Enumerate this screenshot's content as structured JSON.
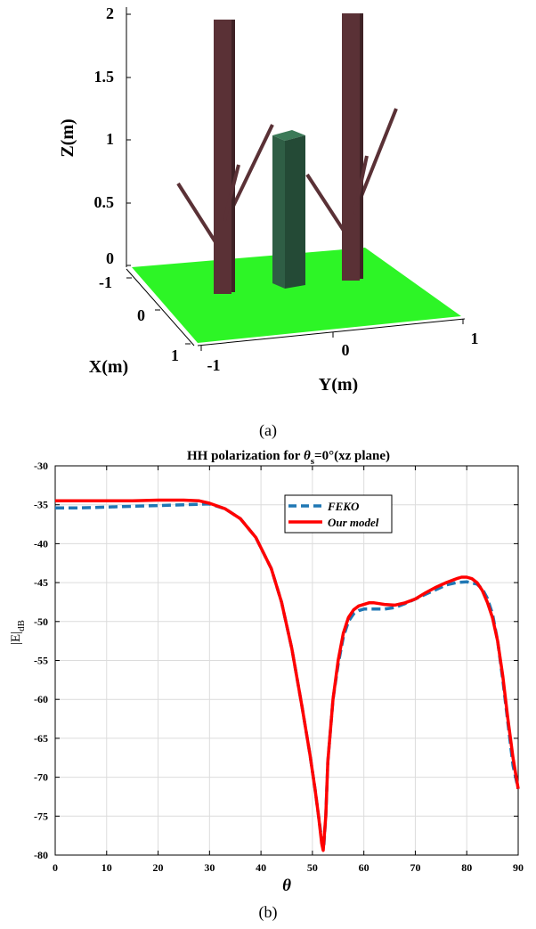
{
  "panel_a": {
    "caption": "(a)",
    "z_axis": {
      "label": "Z(m)",
      "ticks": [
        "0",
        "0.5",
        "1",
        "1.5",
        "2"
      ]
    },
    "x_axis": {
      "label": "X(m)",
      "ticks": [
        "-1",
        "0",
        "1"
      ]
    },
    "y_axis": {
      "label": "Y(m)",
      "ticks": [
        "-1",
        "0",
        "1"
      ]
    },
    "colors": {
      "ground": "#2df526",
      "trunk": "#5a3136",
      "trunk_side": "#3f2226",
      "block": "#2f5e45",
      "block_top": "#3c7a58",
      "block_side": "#244a36",
      "branch": "#5a3136"
    }
  },
  "panel_b": {
    "caption": "(b)",
    "title_prefix": "HH polarization for ",
    "title_theta": "θ",
    "title_sub": "s",
    "title_suffix": "=0°(xz plane)",
    "ylabel_main": "|E|",
    "ylabel_sub": "dB",
    "xlabel": "θ",
    "legend": {
      "feko": "FEKO",
      "model": "Our model"
    }
  },
  "chart_data": {
    "type": "line",
    "title": "HH polarization for θs=0°(xz plane)",
    "xlabel": "θ",
    "ylabel": "|E|dB",
    "xlim": [
      0,
      90
    ],
    "ylim": [
      -80,
      -30
    ],
    "xticks": [
      0,
      10,
      20,
      30,
      40,
      50,
      60,
      70,
      80,
      90
    ],
    "yticks": [
      -30,
      -35,
      -40,
      -45,
      -50,
      -55,
      -60,
      -65,
      -70,
      -75,
      -80
    ],
    "grid": true,
    "legend_position": "top-right",
    "series": [
      {
        "name": "FEKO",
        "color": "#1f77b4",
        "style": "dashed",
        "x": [
          0,
          5,
          10,
          15,
          20,
          25,
          30,
          33,
          36,
          39,
          42,
          44,
          46,
          48,
          49.5,
          50.5,
          51.2,
          51.8,
          52.2,
          52.6,
          53,
          54,
          55,
          56,
          57,
          58,
          59,
          60,
          62,
          64,
          66,
          68,
          70,
          72,
          74,
          76,
          78,
          80,
          82,
          83,
          84,
          85,
          86,
          87,
          88,
          89,
          90
        ],
        "y": [
          -35.4,
          -35.4,
          -35.3,
          -35.2,
          -35.1,
          -35,
          -34.9,
          -35.5,
          -36.8,
          -39.2,
          -43.2,
          -47.5,
          -53.5,
          -61,
          -67,
          -71.5,
          -75,
          -78,
          -79,
          -75,
          -68,
          -60,
          -55.5,
          -52,
          -50,
          -49,
          -48.6,
          -48.4,
          -48.4,
          -48.4,
          -48.2,
          -47.7,
          -47.1,
          -46.5,
          -45.9,
          -45.3,
          -45,
          -44.9,
          -45.2,
          -45.8,
          -47,
          -49,
          -52.5,
          -57.5,
          -63,
          -68.5,
          -71.5
        ]
      },
      {
        "name": "Our model",
        "color": "#ff0000",
        "style": "solid",
        "x": [
          0,
          5,
          10,
          15,
          20,
          25,
          28,
          30,
          33,
          36,
          39,
          42,
          44,
          46,
          48,
          49.5,
          50.5,
          51.2,
          51.8,
          52.1,
          52.6,
          53,
          54,
          55,
          56,
          57,
          58,
          59,
          60,
          61,
          62,
          63,
          64,
          66,
          68,
          70,
          72,
          74,
          76,
          78,
          79,
          80,
          81,
          82,
          83,
          84,
          85,
          86,
          87,
          88,
          89,
          90
        ],
        "y": [
          -34.5,
          -34.5,
          -34.5,
          -34.5,
          -34.4,
          -34.4,
          -34.5,
          -34.8,
          -35.5,
          -36.8,
          -39.2,
          -43.2,
          -47.5,
          -53.5,
          -61,
          -67,
          -71.5,
          -75,
          -78.5,
          -79.4,
          -75,
          -68,
          -60,
          -55,
          -51.5,
          -49.5,
          -48.5,
          -48,
          -47.8,
          -47.6,
          -47.6,
          -47.7,
          -47.8,
          -47.9,
          -47.6,
          -47.1,
          -46.3,
          -45.6,
          -45,
          -44.5,
          -44.3,
          -44.3,
          -44.5,
          -45,
          -46,
          -47.5,
          -49.5,
          -52.5,
          -57,
          -62.5,
          -67.5,
          -71.5
        ]
      }
    ]
  }
}
